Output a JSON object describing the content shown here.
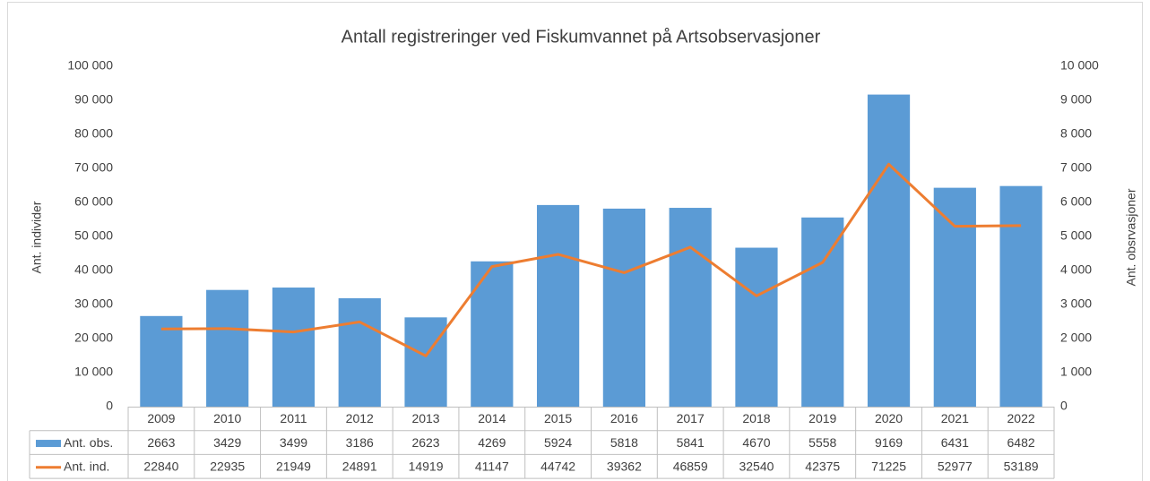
{
  "chart_data": {
    "type": "bar",
    "title": "Antall registreringer ved Fiskumvannet på Artsobservasjoner",
    "y_label": "Ant. individer",
    "y2_label": "Ant. obsrvasjoner",
    "categories": [
      "2009",
      "2010",
      "2011",
      "2012",
      "2013",
      "2014",
      "2015",
      "2016",
      "2017",
      "2018",
      "2019",
      "2020",
      "2021",
      "2022"
    ],
    "series": [
      {
        "name": "Ant. obs.",
        "type": "bar",
        "axis": "y2",
        "color": "#5b9bd5",
        "values": [
          2663,
          3429,
          3499,
          3186,
          2623,
          4269,
          5924,
          5818,
          5841,
          4670,
          5558,
          9169,
          6431,
          6482
        ]
      },
      {
        "name": "Ant. ind.",
        "type": "line",
        "axis": "y",
        "color": "#ed7d31",
        "values": [
          22840,
          22935,
          21949,
          24891,
          14919,
          41147,
          44742,
          39362,
          46859,
          32540,
          42375,
          71225,
          52977,
          53189
        ]
      }
    ],
    "ylim": [
      0,
      100000
    ],
    "yticks": [
      0,
      {
        "value": 10000,
        "label": "10 000"
      },
      {
        "value": 20000,
        "label": "20 000"
      },
      {
        "value": 30000,
        "label": "30 000"
      },
      {
        "value": 40000,
        "label": "40 000"
      },
      {
        "value": 50000,
        "label": "50 000"
      },
      {
        "value": 60000,
        "label": "60 000"
      },
      {
        "value": 70000,
        "label": "70 000"
      },
      {
        "value": 80000,
        "label": "80 000"
      },
      {
        "value": 90000,
        "label": "90 000"
      },
      {
        "value": 100000,
        "label": "100 000"
      }
    ],
    "y2lim": [
      0,
      10000
    ],
    "y2ticks": [
      0,
      {
        "value": 1000,
        "label": "1 000"
      },
      {
        "value": 2000,
        "label": "2 000"
      },
      {
        "value": 3000,
        "label": "3 000"
      },
      {
        "value": 4000,
        "label": "4 000"
      },
      {
        "value": 5000,
        "label": "5 000"
      },
      {
        "value": 6000,
        "label": "6 000"
      },
      {
        "value": 7000,
        "label": "7 000"
      },
      {
        "value": 8000,
        "label": "8 000"
      },
      {
        "value": 9000,
        "label": "9 000"
      },
      {
        "value": 10000,
        "label": "10 000"
      }
    ],
    "grid": false,
    "data_table": true
  }
}
